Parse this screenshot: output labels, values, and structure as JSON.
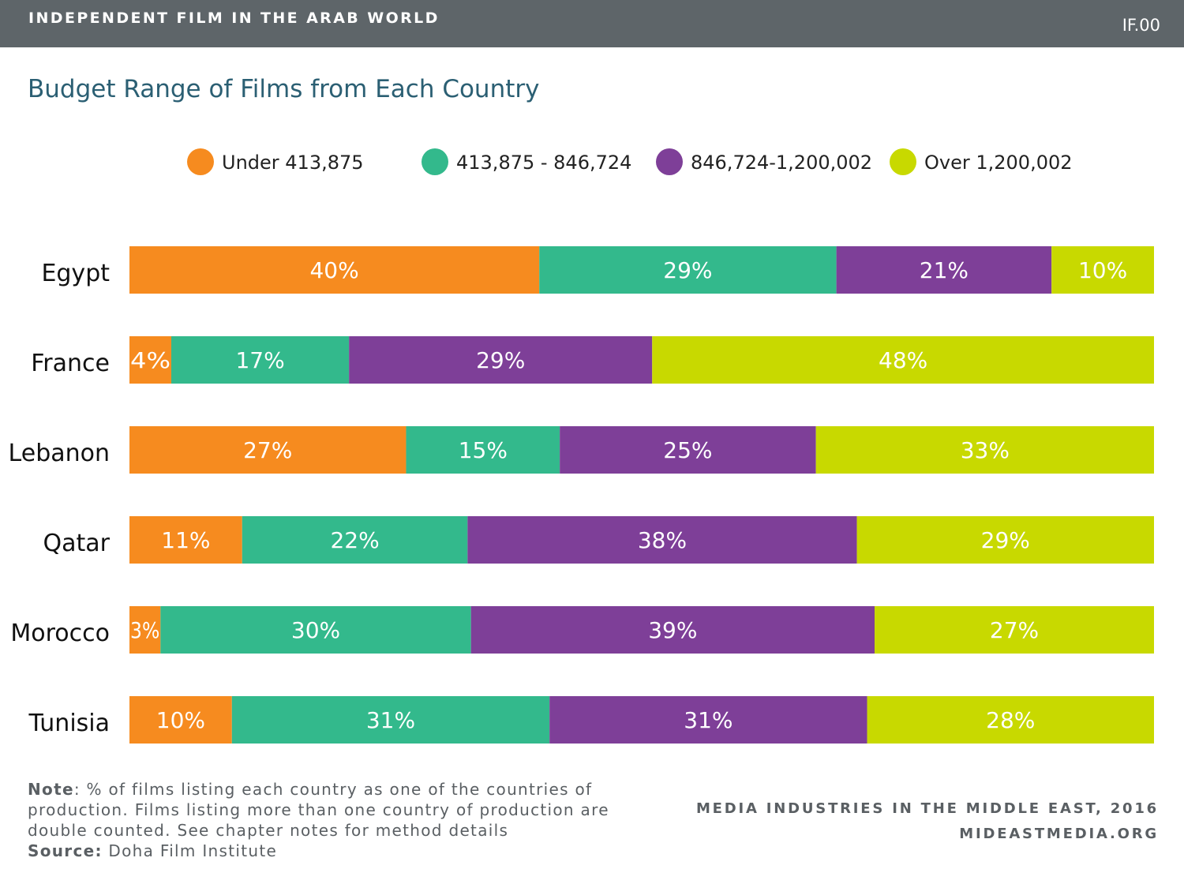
{
  "header": {
    "title": "INDEPENDENT FILM IN THE ARAB WORLD",
    "code": "IF.00"
  },
  "chart_data": {
    "type": "bar",
    "orientation": "horizontal",
    "stacked": true,
    "title": "Budget Range of Films from Each Country",
    "categories": [
      "Egypt",
      "France",
      "Lebanon",
      "Qatar",
      "Morocco",
      "Tunisia"
    ],
    "series": [
      {
        "name": "Under 413,875",
        "color": "#f68b1f",
        "values": [
          40,
          4,
          27,
          11,
          3,
          10
        ]
      },
      {
        "name": "413,875 - 846,724",
        "color": "#33b98c",
        "values": [
          29,
          17,
          15,
          22,
          30,
          31
        ]
      },
      {
        "name": "846,724-1,200,002",
        "color": "#7e3f98",
        "values": [
          21,
          29,
          25,
          38,
          39,
          31
        ]
      },
      {
        "name": "Over 1,200,002",
        "color": "#c8d900",
        "values": [
          10,
          48,
          33,
          29,
          27,
          28
        ]
      }
    ],
    "data_labels": [
      [
        "40%",
        "4%",
        "27%",
        "11%",
        "3%",
        "10%"
      ],
      [
        "29%",
        "17%",
        "15%",
        "22%",
        "30%",
        "31%"
      ],
      [
        "21%",
        "29%",
        "25%",
        "38%",
        "39%",
        "31%"
      ],
      [
        "10%",
        "48%",
        "33%",
        "29%",
        "27%",
        "28%"
      ]
    ],
    "legend_position": "top",
    "grid": false
  },
  "footer": {
    "note_label": "Note",
    "note_text": ": % of films listing each country as one of the countries of production. Films listing more than one country of production are double counted. See chapter notes for method details",
    "source_label": "Source:",
    "source_text": " Doha Film Institute",
    "credit_line1": "MEDIA INDUSTRIES IN THE MIDDLE EAST, 2016",
    "credit_line2": "MIDEASTMEDIA.ORG"
  }
}
